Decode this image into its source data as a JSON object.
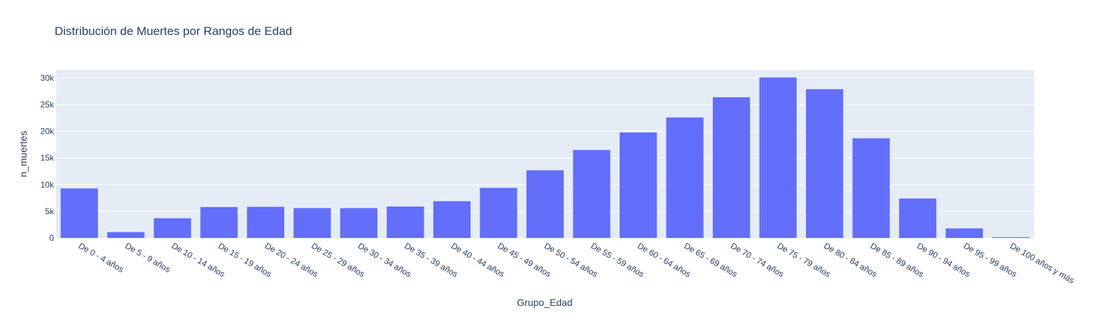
{
  "chart_data": {
    "type": "bar",
    "title": "Distribución de Muertes por Rangos de Edad",
    "xlabel": "Grupo_Edad",
    "ylabel": "n_muertes",
    "categories": [
      "De 0 - 4 años",
      "De 5 - 9 años",
      "De 10 - 14 años",
      "De 15 - 19 años",
      "De 20 - 24 años",
      "De 25 - 29 años",
      "De 30 - 34 años",
      "De 35 - 39 años",
      "De 40 - 44 años",
      "De 45 - 49 años",
      "De 50 - 54 años",
      "De 55 - 59 años",
      "De 60 - 64 años",
      "De 65 - 69 años",
      "De 70 - 74 años",
      "De 75 - 79 años",
      "De 80 - 84 años",
      "De 85 - 89 años",
      "De 90 - 94 años",
      "De 95 - 99 años",
      "De 100 años y más"
    ],
    "values": [
      9300,
      1100,
      3700,
      5800,
      5850,
      5600,
      5600,
      5900,
      6900,
      9400,
      12700,
      16500,
      19800,
      22600,
      26400,
      30100,
      27900,
      18700,
      7400,
      1800,
      150
    ],
    "ylim": [
      0,
      31500
    ],
    "yticks": [
      0,
      5000,
      10000,
      15000,
      20000,
      25000,
      30000
    ],
    "ytick_labels": [
      "0",
      "5k",
      "10k",
      "15k",
      "20k",
      "25k",
      "30k"
    ],
    "grid": true,
    "colors": {
      "bar": "#636efa",
      "plot_bg": "#e5ecf6",
      "grid": "#ffffff",
      "text": "#2a3f5f",
      "paper_bg": "#ffffff"
    }
  }
}
